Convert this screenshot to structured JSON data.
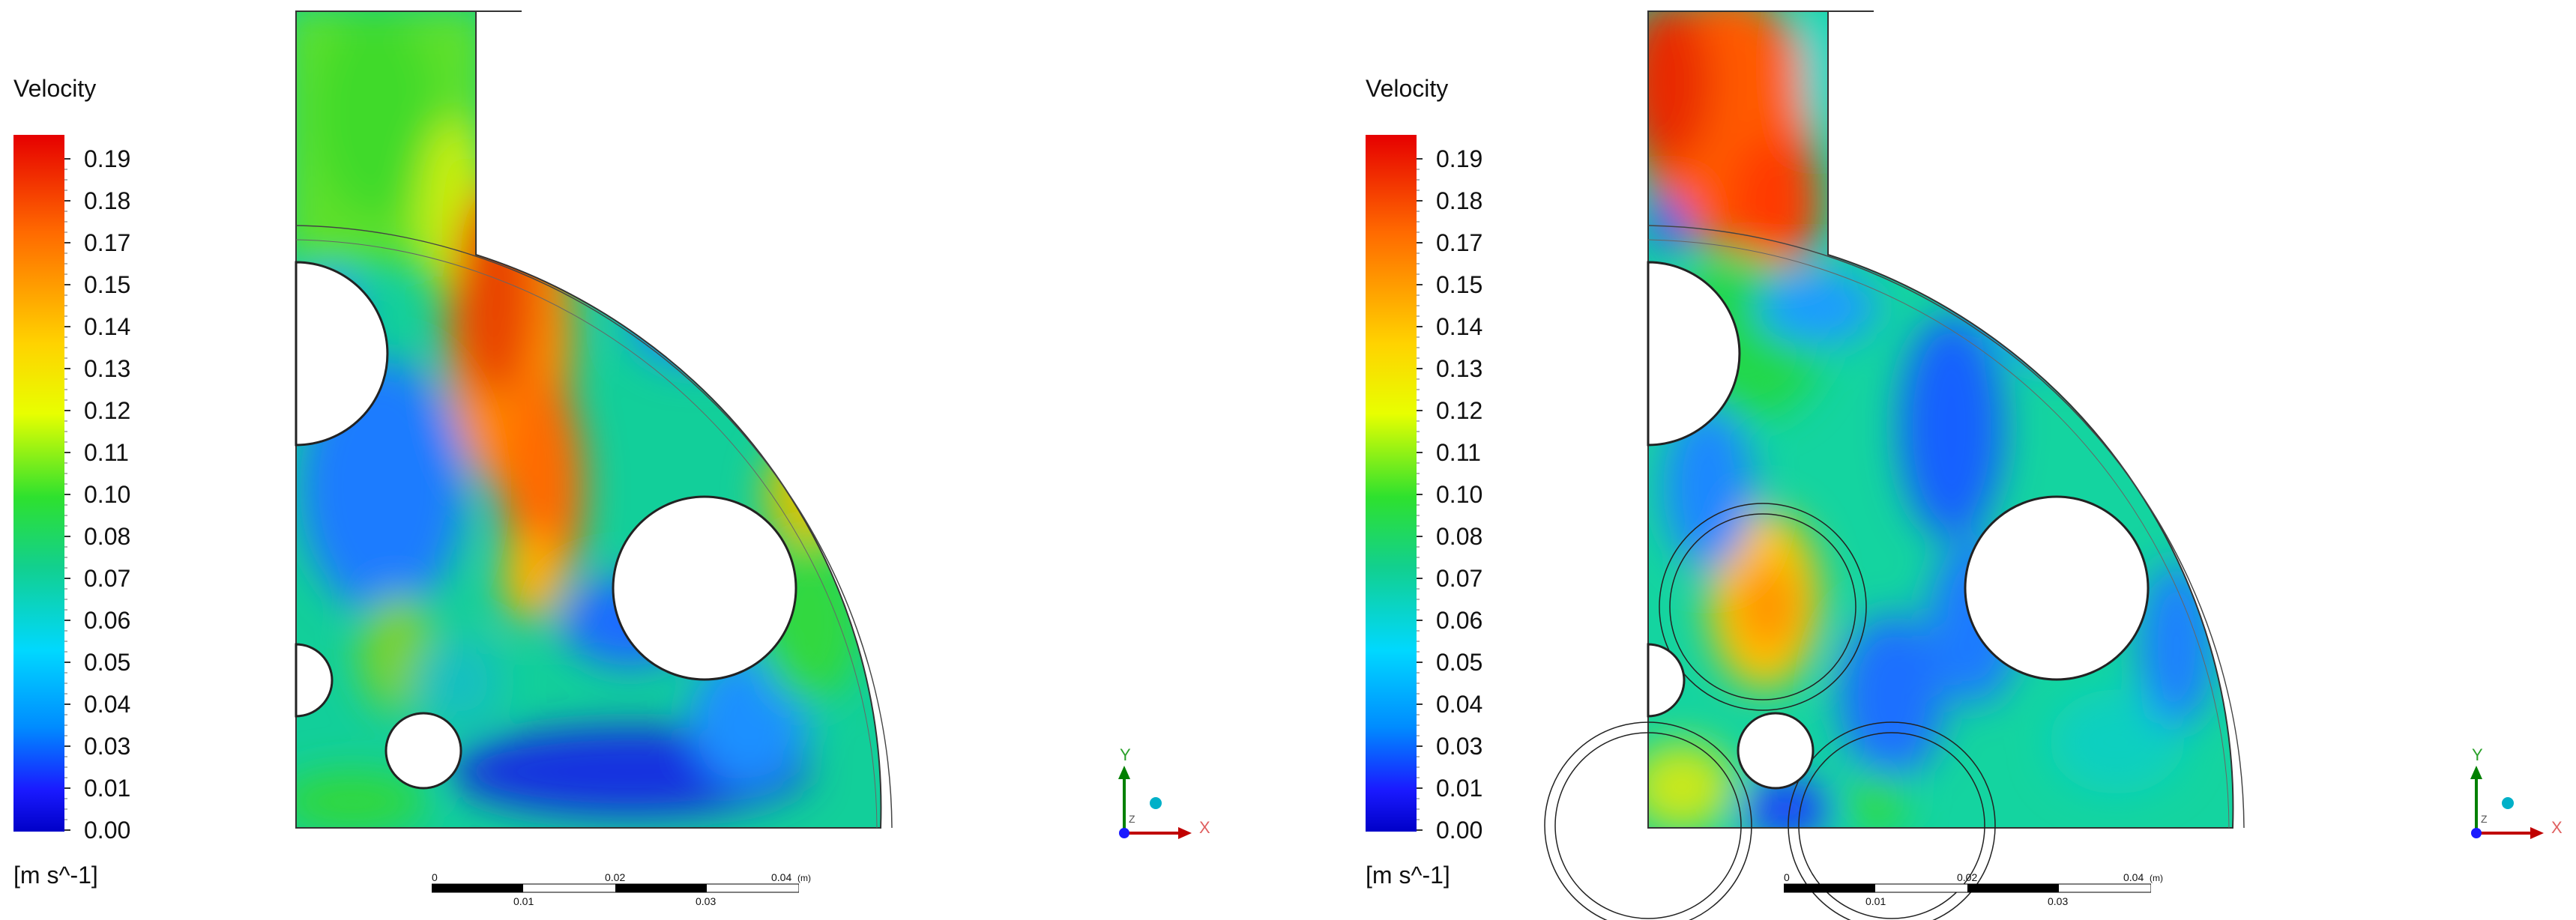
{
  "legend": {
    "title": "Velocity",
    "units": "[m s^-1]",
    "ticks": [
      "0.19",
      "0.18",
      "0.17",
      "0.15",
      "0.14",
      "0.13",
      "0.12",
      "0.11",
      "0.10",
      "0.08",
      "0.07",
      "0.06",
      "0.05",
      "0.04",
      "0.03",
      "0.01",
      "0.00"
    ]
  },
  "scalebar": {
    "top_labels": [
      "0",
      "0.02",
      "0.04"
    ],
    "unit": "(m)",
    "bottom_labels": [
      "0.01",
      "0.03"
    ]
  },
  "axes": {
    "x": "X",
    "y": "Y",
    "z": "Z"
  },
  "colors": {
    "red": "#e60000",
    "orange": "#ff7a00",
    "yellow": "#e6ff00",
    "green": "#25d82a",
    "cyan": "#00d8ff",
    "blue": "#1050ff",
    "navy": "#0000c8",
    "axis_x": "#c00000",
    "axis_y": "#008000",
    "axis_z": "#00a0c0"
  }
}
